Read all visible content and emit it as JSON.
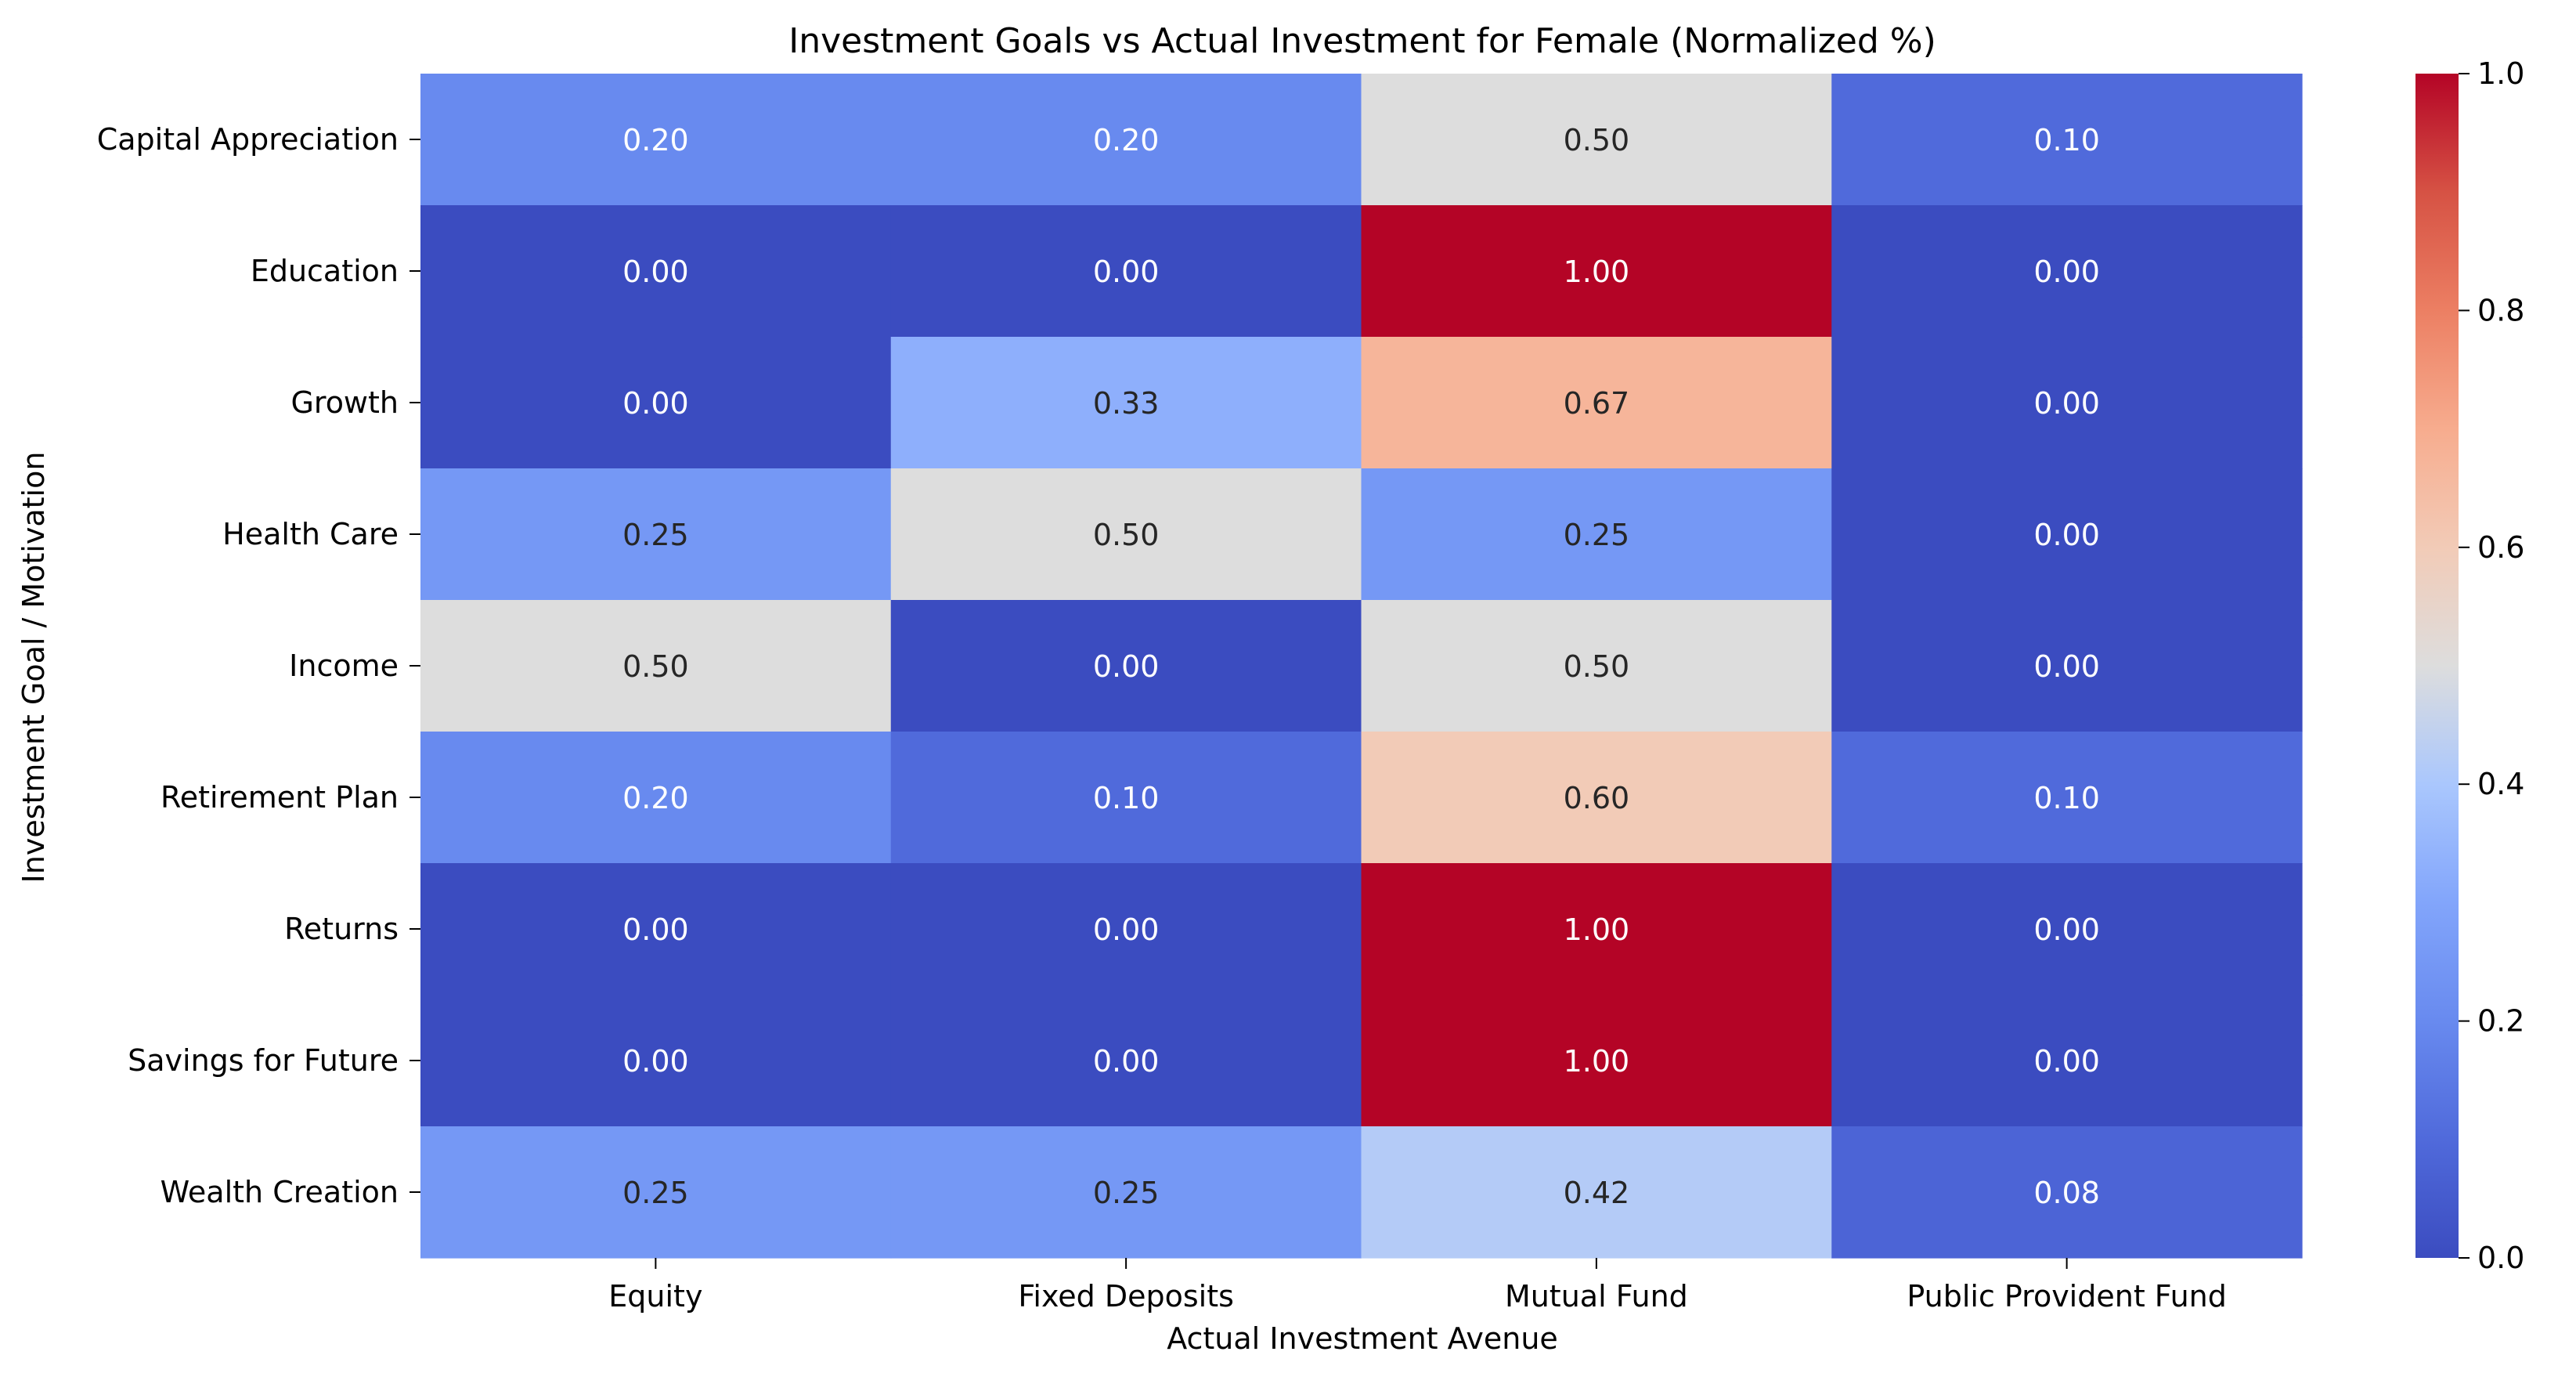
{
  "chart_data": {
    "type": "heatmap",
    "title": "Investment Goals vs Actual Investment for Female (Normalized %)",
    "xlabel": "Actual Investment Avenue",
    "ylabel": "Investment Goal / Motivation",
    "x_categories": [
      "Equity",
      "Fixed Deposits",
      "Mutual Fund",
      "Public Provident Fund"
    ],
    "y_categories": [
      "Capital Appreciation",
      "Education",
      "Growth",
      "Health Care",
      "Income",
      "Retirement Plan",
      "Returns",
      "Savings for Future",
      "Wealth Creation"
    ],
    "values": [
      [
        0.2,
        0.2,
        0.5,
        0.1
      ],
      [
        0.0,
        0.0,
        1.0,
        0.0
      ],
      [
        0.0,
        0.33,
        0.67,
        0.0
      ],
      [
        0.25,
        0.5,
        0.25,
        0.0
      ],
      [
        0.5,
        0.0,
        0.5,
        0.0
      ],
      [
        0.2,
        0.1,
        0.6,
        0.1
      ],
      [
        0.0,
        0.0,
        1.0,
        0.0
      ],
      [
        0.0,
        0.0,
        1.0,
        0.0
      ],
      [
        0.25,
        0.25,
        0.42,
        0.08
      ]
    ],
    "value_format": "0.00",
    "colormap": "coolwarm",
    "vmin": 0.0,
    "vmax": 1.0,
    "colorbar": {
      "ticks": [
        0.0,
        0.2,
        0.4,
        0.6,
        0.8,
        1.0
      ],
      "tick_labels": [
        "0.0",
        "0.2",
        "0.4",
        "0.6",
        "0.8",
        "1.0"
      ],
      "placement": "right"
    },
    "grid": false,
    "colors": {
      "dark_label": "#262626",
      "light_label": "#ffffff"
    }
  }
}
